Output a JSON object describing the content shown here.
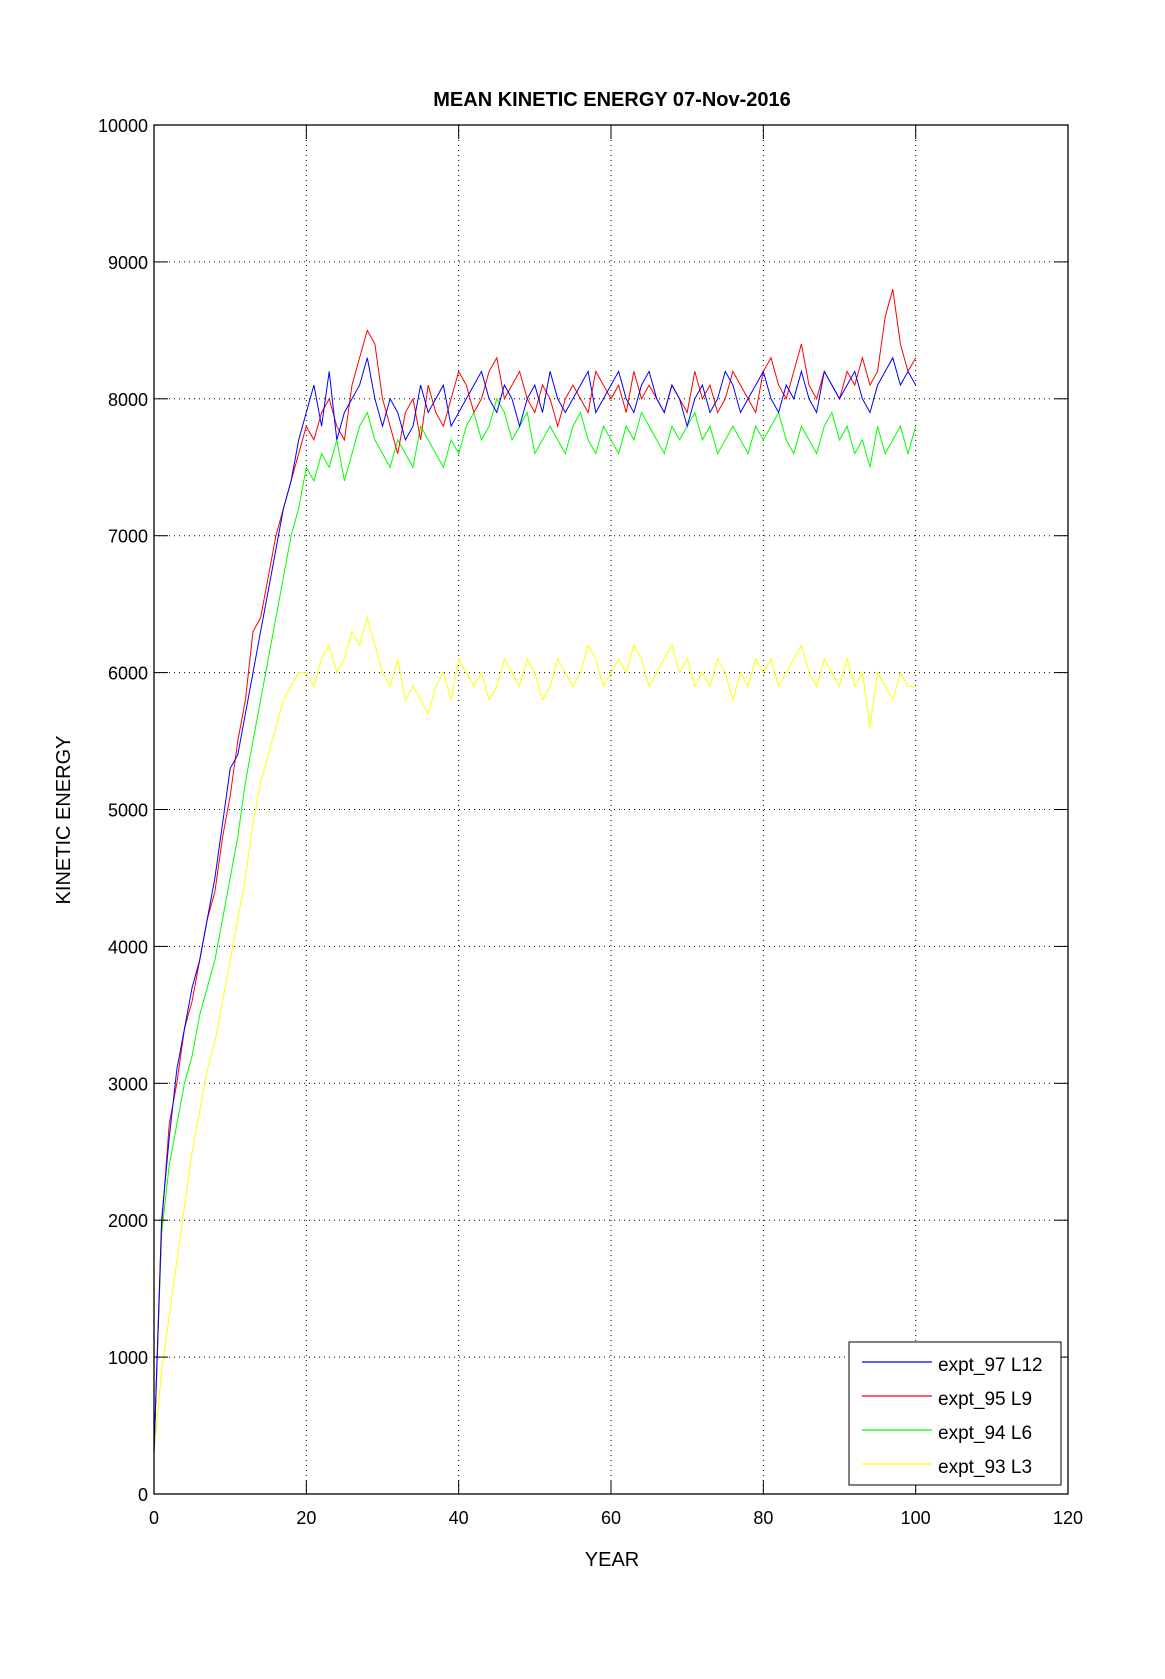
{
  "chart_data": {
    "type": "line",
    "title": "MEAN KINETIC ENERGY 07-Nov-2016",
    "xlabel": "YEAR",
    "ylabel": "KINETIC ENERGY",
    "xlim": [
      0,
      120
    ],
    "ylim": [
      0,
      10000
    ],
    "xticks": [
      "0",
      "20",
      "40",
      "60",
      "80",
      "100",
      "120"
    ],
    "yticks": [
      "0",
      "1000",
      "2000",
      "3000",
      "4000",
      "5000",
      "6000",
      "7000",
      "8000",
      "9000",
      "10000"
    ],
    "grid": true,
    "legend_position": "bottom-right",
    "x_start": 0,
    "x_step": 1,
    "series": [
      {
        "name": "expt_97 L12",
        "color": "#0000ff",
        "values": [
          300,
          2000,
          2600,
          3100,
          3400,
          3700,
          3900,
          4200,
          4500,
          4900,
          5300,
          5400,
          5700,
          6000,
          6300,
          6600,
          6900,
          7200,
          7400,
          7700,
          7900,
          8100,
          7800,
          8200,
          7700,
          7900,
          8000,
          8100,
          8300,
          8000,
          7800,
          8000,
          7900,
          7700,
          7800,
          8100,
          7900,
          8000,
          8100,
          7800,
          7900,
          8000,
          8100,
          8200,
          8000,
          7900,
          8100,
          8000,
          7800,
          8000,
          8100,
          7900,
          8200,
          8000,
          7900,
          8000,
          8100,
          8200,
          7900,
          8000,
          8100,
          8200,
          8000,
          7900,
          8100,
          8200,
          8000,
          7900,
          8100,
          8000,
          7800,
          8000,
          8100,
          7900,
          8000,
          8200,
          8100,
          7900,
          8000,
          8100,
          8200,
          8000,
          7900,
          8100,
          8000,
          8200,
          8000,
          7900,
          8200,
          8100,
          8000,
          8100,
          8200,
          8000,
          7900,
          8100,
          8200,
          8300,
          8100,
          8200,
          8100
        ]
      },
      {
        "name": "expt_95 L9",
        "color": "#ff0000",
        "values": [
          300,
          1950,
          2700,
          3000,
          3400,
          3600,
          3900,
          4200,
          4400,
          4800,
          5100,
          5500,
          5800,
          6300,
          6400,
          6700,
          7000,
          7200,
          7400,
          7600,
          7800,
          7700,
          7900,
          8000,
          7800,
          7700,
          8100,
          8300,
          8500,
          8400,
          8000,
          7800,
          7600,
          7900,
          8000,
          7700,
          8100,
          7900,
          7800,
          8000,
          8200,
          8100,
          7900,
          8000,
          8200,
          8300,
          8000,
          8100,
          8200,
          8000,
          7900,
          8100,
          8000,
          7800,
          8000,
          8100,
          8000,
          7900,
          8200,
          8100,
          8000,
          8100,
          7900,
          8200,
          8000,
          8100,
          8000,
          7900,
          8100,
          8000,
          7900,
          8200,
          8000,
          8100,
          7900,
          8000,
          8200,
          8100,
          8000,
          7900,
          8200,
          8300,
          8100,
          8000,
          8200,
          8400,
          8100,
          8000,
          8200,
          8100,
          8000,
          8200,
          8100,
          8300,
          8100,
          8200,
          8600,
          8800,
          8400,
          8200,
          8300
        ]
      },
      {
        "name": "expt_94 L6",
        "color": "#00ff00",
        "values": [
          300,
          1900,
          2400,
          2700,
          3000,
          3200,
          3500,
          3700,
          3900,
          4200,
          4500,
          4800,
          5200,
          5500,
          5800,
          6100,
          6400,
          6700,
          7000,
          7200,
          7500,
          7400,
          7600,
          7500,
          7700,
          7400,
          7600,
          7800,
          7900,
          7700,
          7600,
          7500,
          7700,
          7600,
          7500,
          7800,
          7700,
          7600,
          7500,
          7700,
          7600,
          7800,
          7900,
          7700,
          7800,
          8000,
          7900,
          7700,
          7800,
          7900,
          7600,
          7700,
          7800,
          7700,
          7600,
          7800,
          7900,
          7700,
          7600,
          7800,
          7700,
          7600,
          7800,
          7700,
          7900,
          7800,
          7700,
          7600,
          7800,
          7700,
          7800,
          7900,
          7700,
          7800,
          7600,
          7700,
          7800,
          7700,
          7600,
          7800,
          7700,
          7800,
          7900,
          7700,
          7600,
          7800,
          7700,
          7600,
          7800,
          7900,
          7700,
          7800,
          7600,
          7700,
          7500,
          7800,
          7600,
          7700,
          7800,
          7600,
          7800
        ]
      },
      {
        "name": "expt_93 L3",
        "color": "#ffff00",
        "values": [
          300,
          900,
          1300,
          1700,
          2100,
          2500,
          2800,
          3100,
          3300,
          3600,
          3900,
          4200,
          4500,
          4900,
          5200,
          5400,
          5600,
          5800,
          5900,
          6000,
          6000,
          5900,
          6100,
          6200,
          6000,
          6100,
          6300,
          6200,
          6400,
          6200,
          6000,
          5900,
          6100,
          5800,
          5900,
          5800,
          5700,
          5900,
          6000,
          5800,
          6100,
          6000,
          5900,
          6000,
          5800,
          5900,
          6100,
          6000,
          5900,
          6100,
          6000,
          5800,
          5900,
          6100,
          6000,
          5900,
          6000,
          6200,
          6100,
          5900,
          6000,
          6100,
          6000,
          6200,
          6100,
          5900,
          6000,
          6100,
          6200,
          6000,
          6100,
          5900,
          6000,
          5900,
          6100,
          6000,
          5800,
          6000,
          5900,
          6100,
          6000,
          6100,
          5900,
          6000,
          6100,
          6200,
          6000,
          5900,
          6100,
          6000,
          5900,
          6100,
          5900,
          6000,
          5600,
          6000,
          5900,
          5800,
          6000,
          5900,
          5900
        ]
      }
    ]
  }
}
